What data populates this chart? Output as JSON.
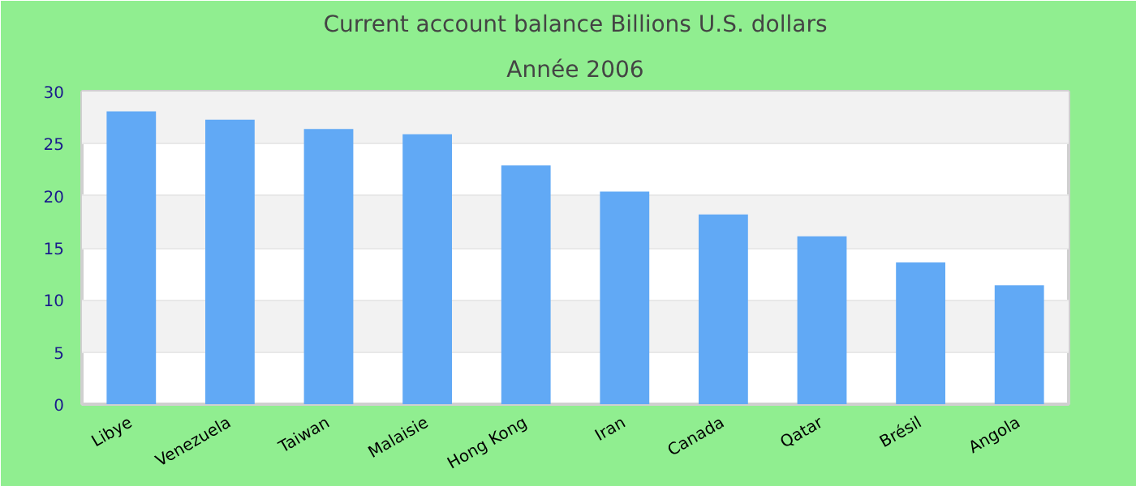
{
  "chart_data": {
    "type": "bar",
    "title": "Current account balance Billions U.S. dollars",
    "subtitle": "Année 2006",
    "categories": [
      "Libye",
      "Venezuela",
      "Taiwan",
      "Malaisie",
      "Hong Kong",
      "Iran",
      "Canada",
      "Qatar",
      "Brésil",
      "Angola"
    ],
    "values": [
      28.1,
      27.3,
      26.4,
      25.9,
      22.9,
      20.4,
      18.2,
      16.1,
      13.6,
      11.4
    ],
    "color": "#61a9f5",
    "ylim": [
      0,
      30
    ],
    "yticks": [
      0,
      5,
      10,
      15,
      20,
      25,
      30
    ],
    "grid": "y"
  }
}
